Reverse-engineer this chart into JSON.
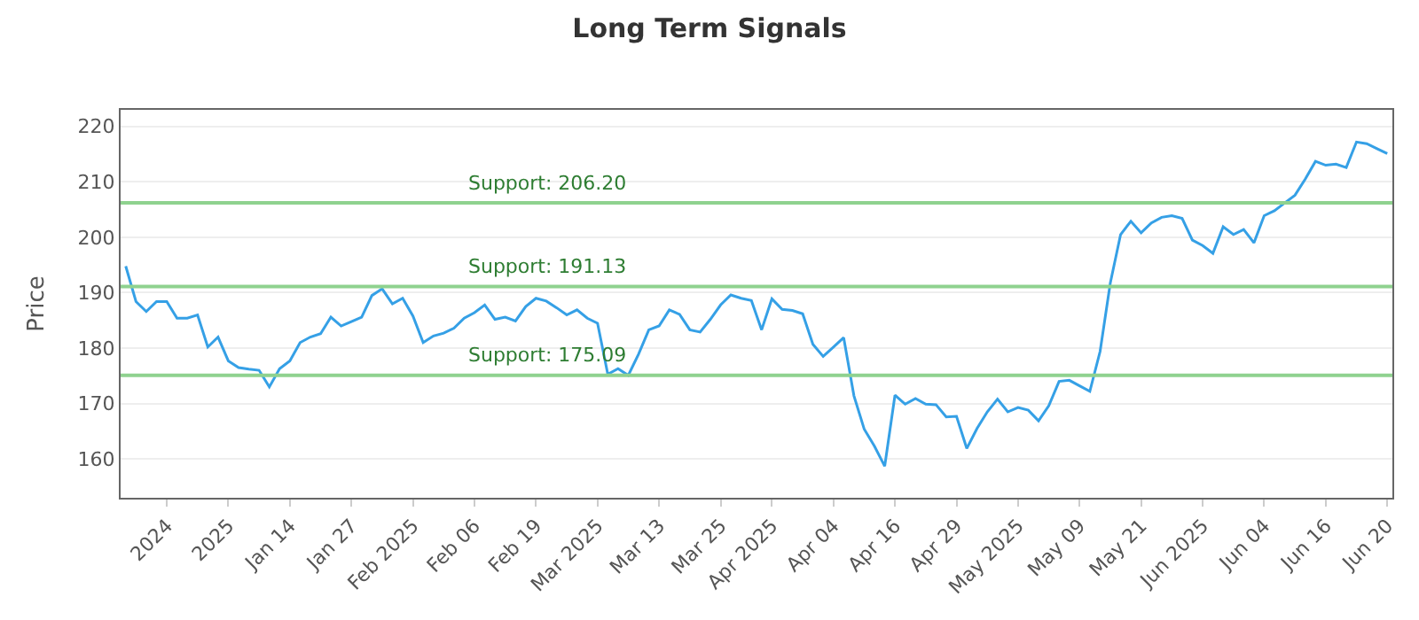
{
  "chart_data": {
    "type": "line",
    "title": "Long Term Signals",
    "ylabel": "Price",
    "categories": [
      null,
      null,
      null,
      null,
      "2024",
      null,
      null,
      null,
      null,
      null,
      "2025",
      null,
      null,
      null,
      null,
      null,
      "Jan 14",
      null,
      null,
      null,
      null,
      null,
      "Jan 27",
      null,
      null,
      null,
      null,
      null,
      "Feb 2025",
      null,
      null,
      null,
      null,
      null,
      "Feb 06",
      null,
      null,
      null,
      null,
      null,
      "Feb 19",
      null,
      null,
      null,
      null,
      null,
      "Mar 2025",
      null,
      null,
      null,
      null,
      null,
      "Mar 13",
      null,
      null,
      null,
      null,
      null,
      "Mar 25",
      null,
      null,
      null,
      null,
      "Apr 2025",
      null,
      null,
      null,
      null,
      null,
      "Apr 04",
      null,
      null,
      null,
      null,
      null,
      "Apr 16",
      null,
      null,
      null,
      null,
      null,
      "Apr 29",
      null,
      null,
      null,
      null,
      null,
      "May 2025",
      null,
      null,
      null,
      null,
      null,
      "May 09",
      null,
      null,
      null,
      null,
      null,
      "May 21",
      null,
      null,
      null,
      null,
      null,
      "Jun 2025",
      null,
      null,
      null,
      null,
      null,
      "Jun 04",
      null,
      null,
      null,
      null,
      null,
      "Jun 16",
      null,
      null,
      null,
      null,
      null,
      "Jun 20"
    ],
    "series": [
      {
        "color": "#35a0e6",
        "values": [
          194.8,
          188.4,
          186.6,
          188.4,
          188.4,
          185.4,
          185.4,
          186,
          180.2,
          182,
          177.7,
          176.5,
          176.2,
          176,
          173,
          176.3,
          177.7,
          181,
          182,
          182.6,
          185.6,
          184,
          184.8,
          185.6,
          189.5,
          190.7,
          188,
          189,
          185.8,
          181,
          182.2,
          182.7,
          183.6,
          185.4,
          186.4,
          187.8,
          185.2,
          185.6,
          184.9,
          187.5,
          189,
          188.5,
          187.3,
          186,
          186.9,
          185.4,
          184.5,
          175.3,
          176.3,
          175.1,
          178.9,
          183.3,
          184,
          186.9,
          186.1,
          183.3,
          182.9,
          185.2,
          187.8,
          189.6,
          189,
          188.6,
          183.3,
          188.9,
          187,
          186.8,
          186.2,
          180.7,
          178.5,
          180.2,
          181.9,
          171.4,
          165.4,
          162.3,
          158.7,
          171.5,
          169.9,
          170.9,
          169.9,
          169.8,
          167.6,
          167.7,
          161.9,
          165.5,
          168.5,
          170.8,
          168.5,
          169.3,
          168.8,
          166.9,
          169.6,
          174,
          174.2,
          173.2,
          172.2,
          179.4,
          191.8,
          200.5,
          202.9,
          200.8,
          202.6,
          203.6,
          203.9,
          203.4,
          199.5,
          198.5,
          197.1,
          201.9,
          200.5,
          201.4,
          199,
          203.9,
          204.8,
          206.2,
          207.6,
          210.5,
          213.7,
          213,
          213.2,
          212.6,
          217.2,
          216.9,
          216,
          215.1
        ]
      }
    ],
    "ylim": [
      153,
      223
    ],
    "yticks": [
      160,
      170,
      180,
      190,
      200,
      210,
      220
    ],
    "grid": "y",
    "marker": "none",
    "line_style": "solid",
    "ref_lines": [
      {
        "axis": "y",
        "value": 206.2,
        "label": "Support: 206.20",
        "color": "#8fd28f"
      },
      {
        "axis": "y",
        "value": 191.13,
        "label": "Support: 191.13",
        "color": "#8fd28f"
      },
      {
        "axis": "y",
        "value": 175.09,
        "label": "Support: 175.09",
        "color": "#8fd28f"
      }
    ]
  }
}
